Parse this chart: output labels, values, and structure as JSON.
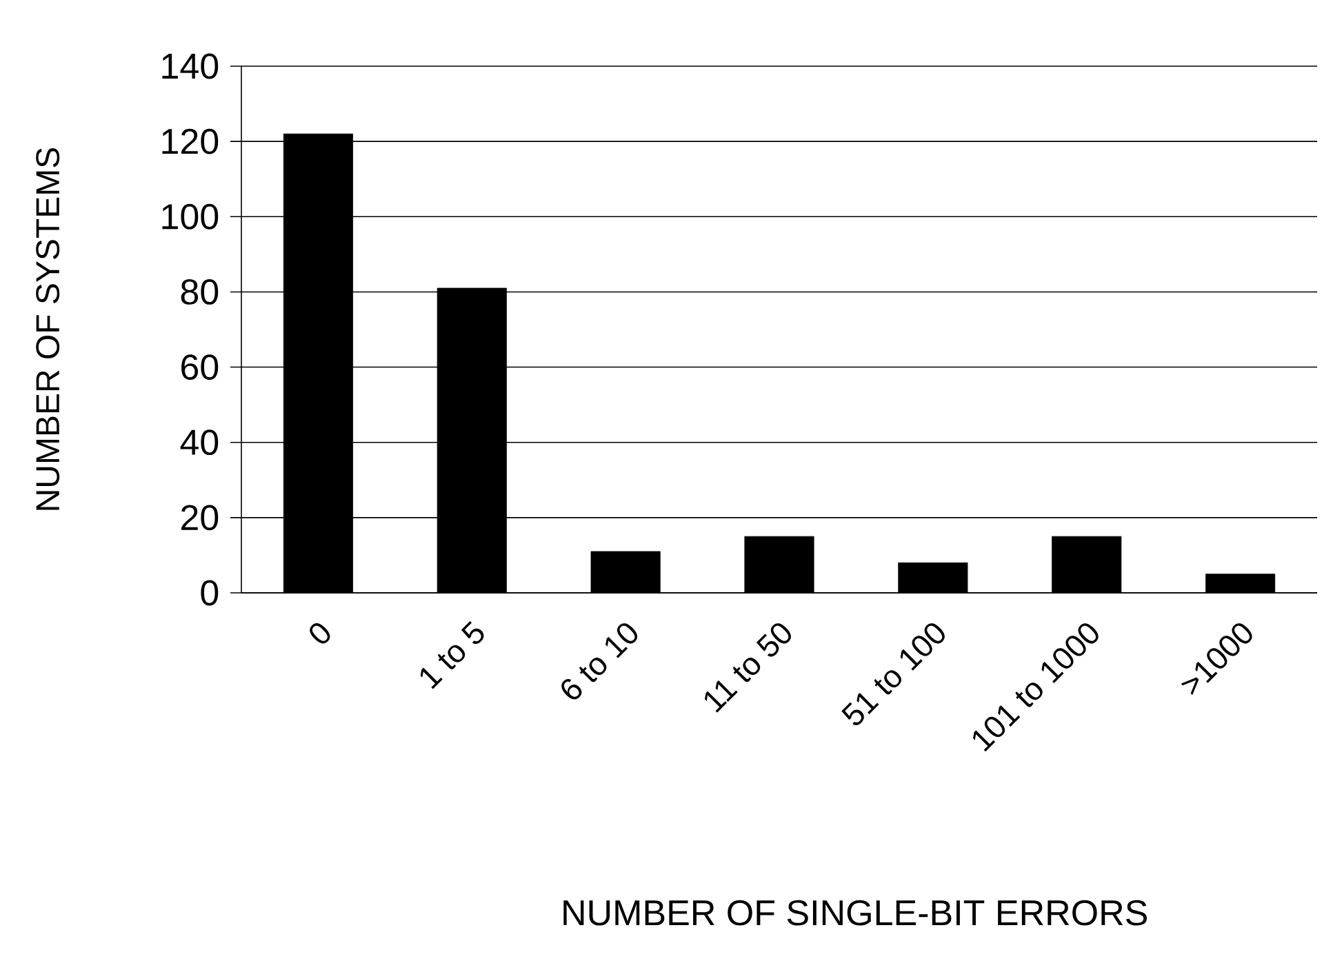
{
  "chart_data": {
    "type": "bar",
    "xlabel": "NUMBER OF SINGLE-BIT ERRORS",
    "ylabel": "NUMBER OF SYSTEMS",
    "categories": [
      "0",
      "1 to 5",
      "6 to 10",
      "11 to 50",
      "51 to 100",
      "101 to 1000",
      ">1000"
    ],
    "values": [
      122,
      81,
      11,
      15,
      8,
      15,
      5
    ],
    "color": "#000000",
    "ylim": [
      0,
      140
    ],
    "yticks": [
      0,
      20,
      40,
      60,
      80,
      100,
      120,
      140
    ],
    "grid": "y"
  }
}
